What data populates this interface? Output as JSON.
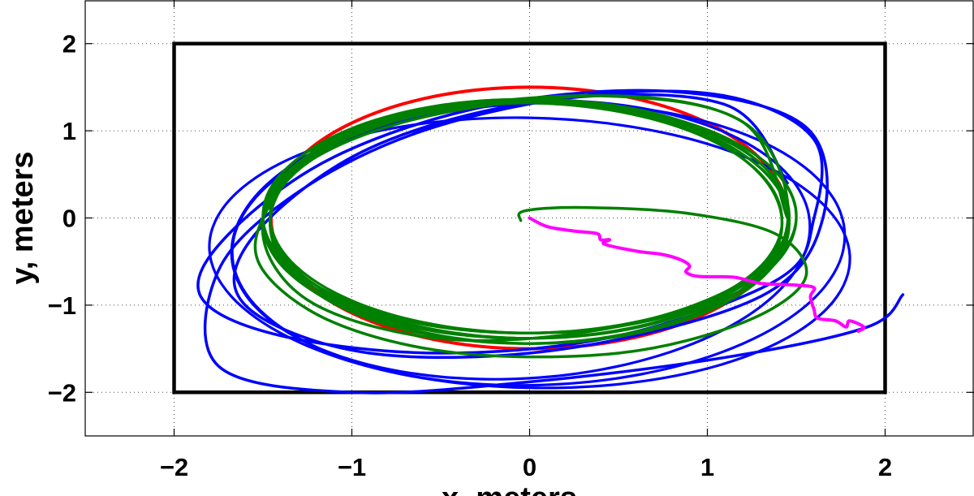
{
  "chart_data": {
    "type": "line",
    "title": "",
    "xlabel": "x, meters",
    "ylabel": "y, meters",
    "xlim": [
      -2.5,
      2.5
    ],
    "ylim": [
      -2.5,
      2.5
    ],
    "xticks": [
      -2,
      -1,
      0,
      1,
      2
    ],
    "yticks": [
      -2,
      -1,
      0,
      1,
      2
    ],
    "xtick_labels": [
      "−2",
      "−1",
      "0",
      "1",
      "2"
    ],
    "ytick_labels": [
      "−2",
      "−1",
      "0",
      "1",
      "2"
    ],
    "grid": true,
    "legend": "none",
    "boundary": {
      "color": "#000000",
      "corners": [
        [
          -2,
          -2
        ],
        [
          2,
          -2
        ],
        [
          2,
          2
        ],
        [
          -2,
          2
        ]
      ]
    },
    "series": [
      {
        "color": "#ff0000",
        "kind": "ellipse",
        "center": [
          0,
          0
        ],
        "rx": 1.5,
        "ry": 1.5,
        "loops": 1
      },
      {
        "color": "#0000ff",
        "kind": "tracked-path",
        "points": [
          [
            2.1,
            -0.88
          ],
          [
            1.9,
            -1.25
          ],
          [
            1.1,
            -1.6
          ],
          [
            0.0,
            -1.88
          ],
          [
            -1.0,
            -2.0
          ],
          [
            -1.75,
            -1.7
          ],
          [
            -1.75,
            -0.6
          ],
          [
            -1.3,
            0.3
          ],
          [
            -0.6,
            1.0
          ],
          [
            0.3,
            1.4
          ],
          [
            1.1,
            1.4
          ],
          [
            1.6,
            0.9
          ],
          [
            1.6,
            0.0
          ],
          [
            1.4,
            -0.7
          ],
          [
            0.5,
            -1.35
          ],
          [
            -0.5,
            -1.55
          ],
          [
            -1.4,
            -1.35
          ],
          [
            -1.85,
            -0.9
          ],
          [
            -1.7,
            -0.2
          ],
          [
            -1.1,
            0.7
          ],
          [
            -0.2,
            1.3
          ],
          [
            0.8,
            1.45
          ],
          [
            1.55,
            1.05
          ],
          [
            1.65,
            0.0
          ],
          [
            1.3,
            -0.9
          ],
          [
            0.2,
            -1.5
          ],
          [
            -0.9,
            -1.55
          ],
          [
            -1.6,
            -1.0
          ],
          [
            -1.55,
            -0.2
          ],
          [
            -0.9,
            0.8
          ],
          [
            0.1,
            1.35
          ],
          [
            1.1,
            1.3
          ],
          [
            1.45,
            0.4
          ]
        ],
        "loops": 3
      },
      {
        "color": "#008000",
        "kind": "tracked-path",
        "points": [
          [
            -0.05,
            -0.03
          ],
          [
            -0.03,
            0.08
          ],
          [
            0.3,
            0.12
          ],
          [
            0.9,
            0.05
          ],
          [
            1.4,
            -0.2
          ],
          [
            1.55,
            -0.7
          ],
          [
            1.2,
            -1.2
          ],
          [
            0.5,
            -1.55
          ],
          [
            -0.4,
            -1.55
          ],
          [
            -1.1,
            -1.2
          ],
          [
            -1.5,
            -0.6
          ],
          [
            -1.5,
            0.0
          ],
          [
            -1.2,
            0.7
          ],
          [
            -0.5,
            1.2
          ],
          [
            0.5,
            1.4
          ],
          [
            1.2,
            1.1
          ],
          [
            1.45,
            0.2
          ],
          [
            1.3,
            -0.6
          ],
          [
            0.6,
            -1.2
          ],
          [
            -0.4,
            -1.4
          ],
          [
            -1.2,
            -1.0
          ],
          [
            -1.5,
            -0.2
          ],
          [
            -1.3,
            0.6
          ],
          [
            -0.6,
            1.2
          ],
          [
            0.4,
            1.4
          ],
          [
            1.2,
            1.1
          ],
          [
            1.45,
            0.0
          ]
        ],
        "loops": 8
      },
      {
        "color": "#ff00ff",
        "kind": "tracked-path",
        "points": [
          [
            0.0,
            0.0
          ],
          [
            0.1,
            -0.1
          ],
          [
            0.25,
            -0.15
          ],
          [
            0.38,
            -0.18
          ],
          [
            0.4,
            -0.25
          ],
          [
            0.45,
            -0.25
          ],
          [
            0.42,
            -0.3
          ],
          [
            0.6,
            -0.38
          ],
          [
            0.75,
            -0.42
          ],
          [
            0.85,
            -0.48
          ],
          [
            0.9,
            -0.55
          ],
          [
            0.88,
            -0.62
          ],
          [
            0.95,
            -0.67
          ],
          [
            1.15,
            -0.68
          ],
          [
            1.3,
            -0.75
          ],
          [
            1.5,
            -0.77
          ],
          [
            1.6,
            -0.8
          ],
          [
            1.58,
            -0.9
          ],
          [
            1.6,
            -1.05
          ],
          [
            1.62,
            -1.15
          ],
          [
            1.72,
            -1.18
          ],
          [
            1.78,
            -1.25
          ],
          [
            1.8,
            -1.18
          ],
          [
            1.88,
            -1.25
          ],
          [
            1.85,
            -1.3
          ]
        ]
      }
    ]
  }
}
